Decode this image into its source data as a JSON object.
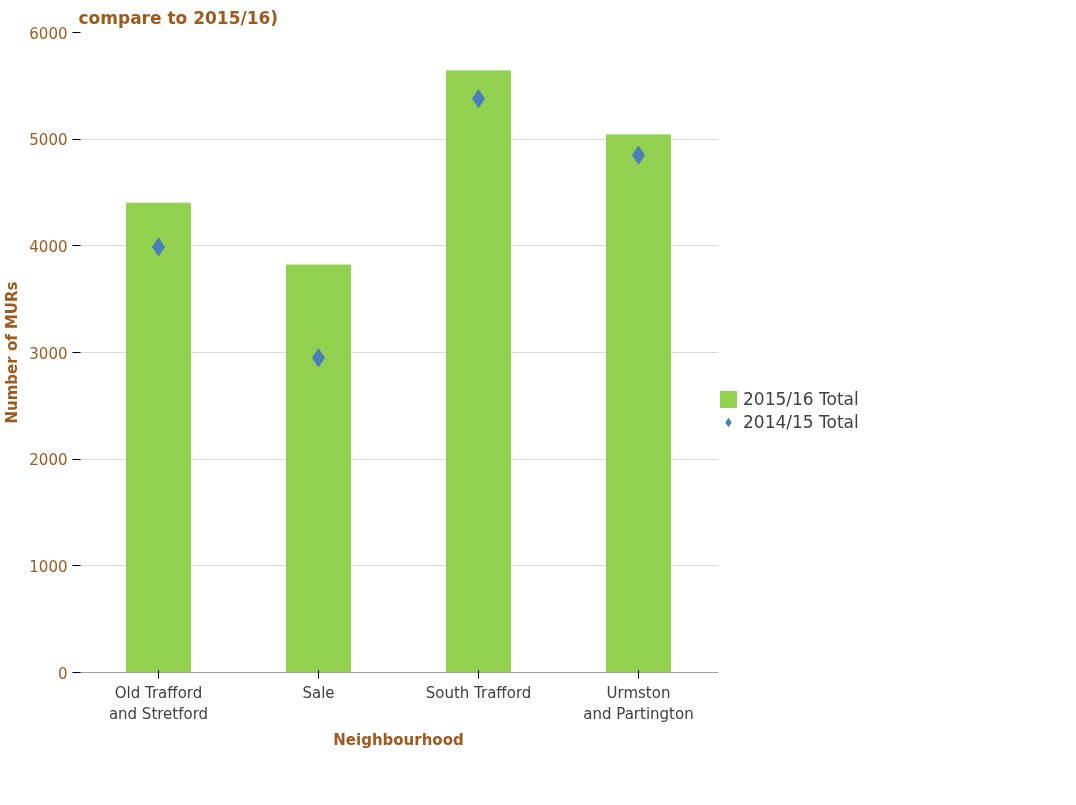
{
  "chart_data": {
    "type": "bar",
    "title": "compare to 2015/16)",
    "categories": [
      "Old Trafford and Stretford",
      "Sale",
      "South Trafford",
      "Urmston and Partington"
    ],
    "series": [
      {
        "name": "2015/16 Total",
        "color": "#92d050",
        "values": [
          4400,
          3820,
          5640,
          5040
        ]
      },
      {
        "name": "2014/15 Total",
        "type": "scatter",
        "marker": "diamond",
        "color": "#4a7ebb",
        "values": [
          3990,
          2950,
          5380,
          4850
        ]
      }
    ],
    "xlabel": "Neighbourhood",
    "ylabel": "Number of MURs",
    "ylim": [
      0,
      6000
    ],
    "yticks": [
      0,
      1000,
      2000,
      3000,
      4000,
      5000,
      6000
    ],
    "grid": "y",
    "legend": "right"
  }
}
